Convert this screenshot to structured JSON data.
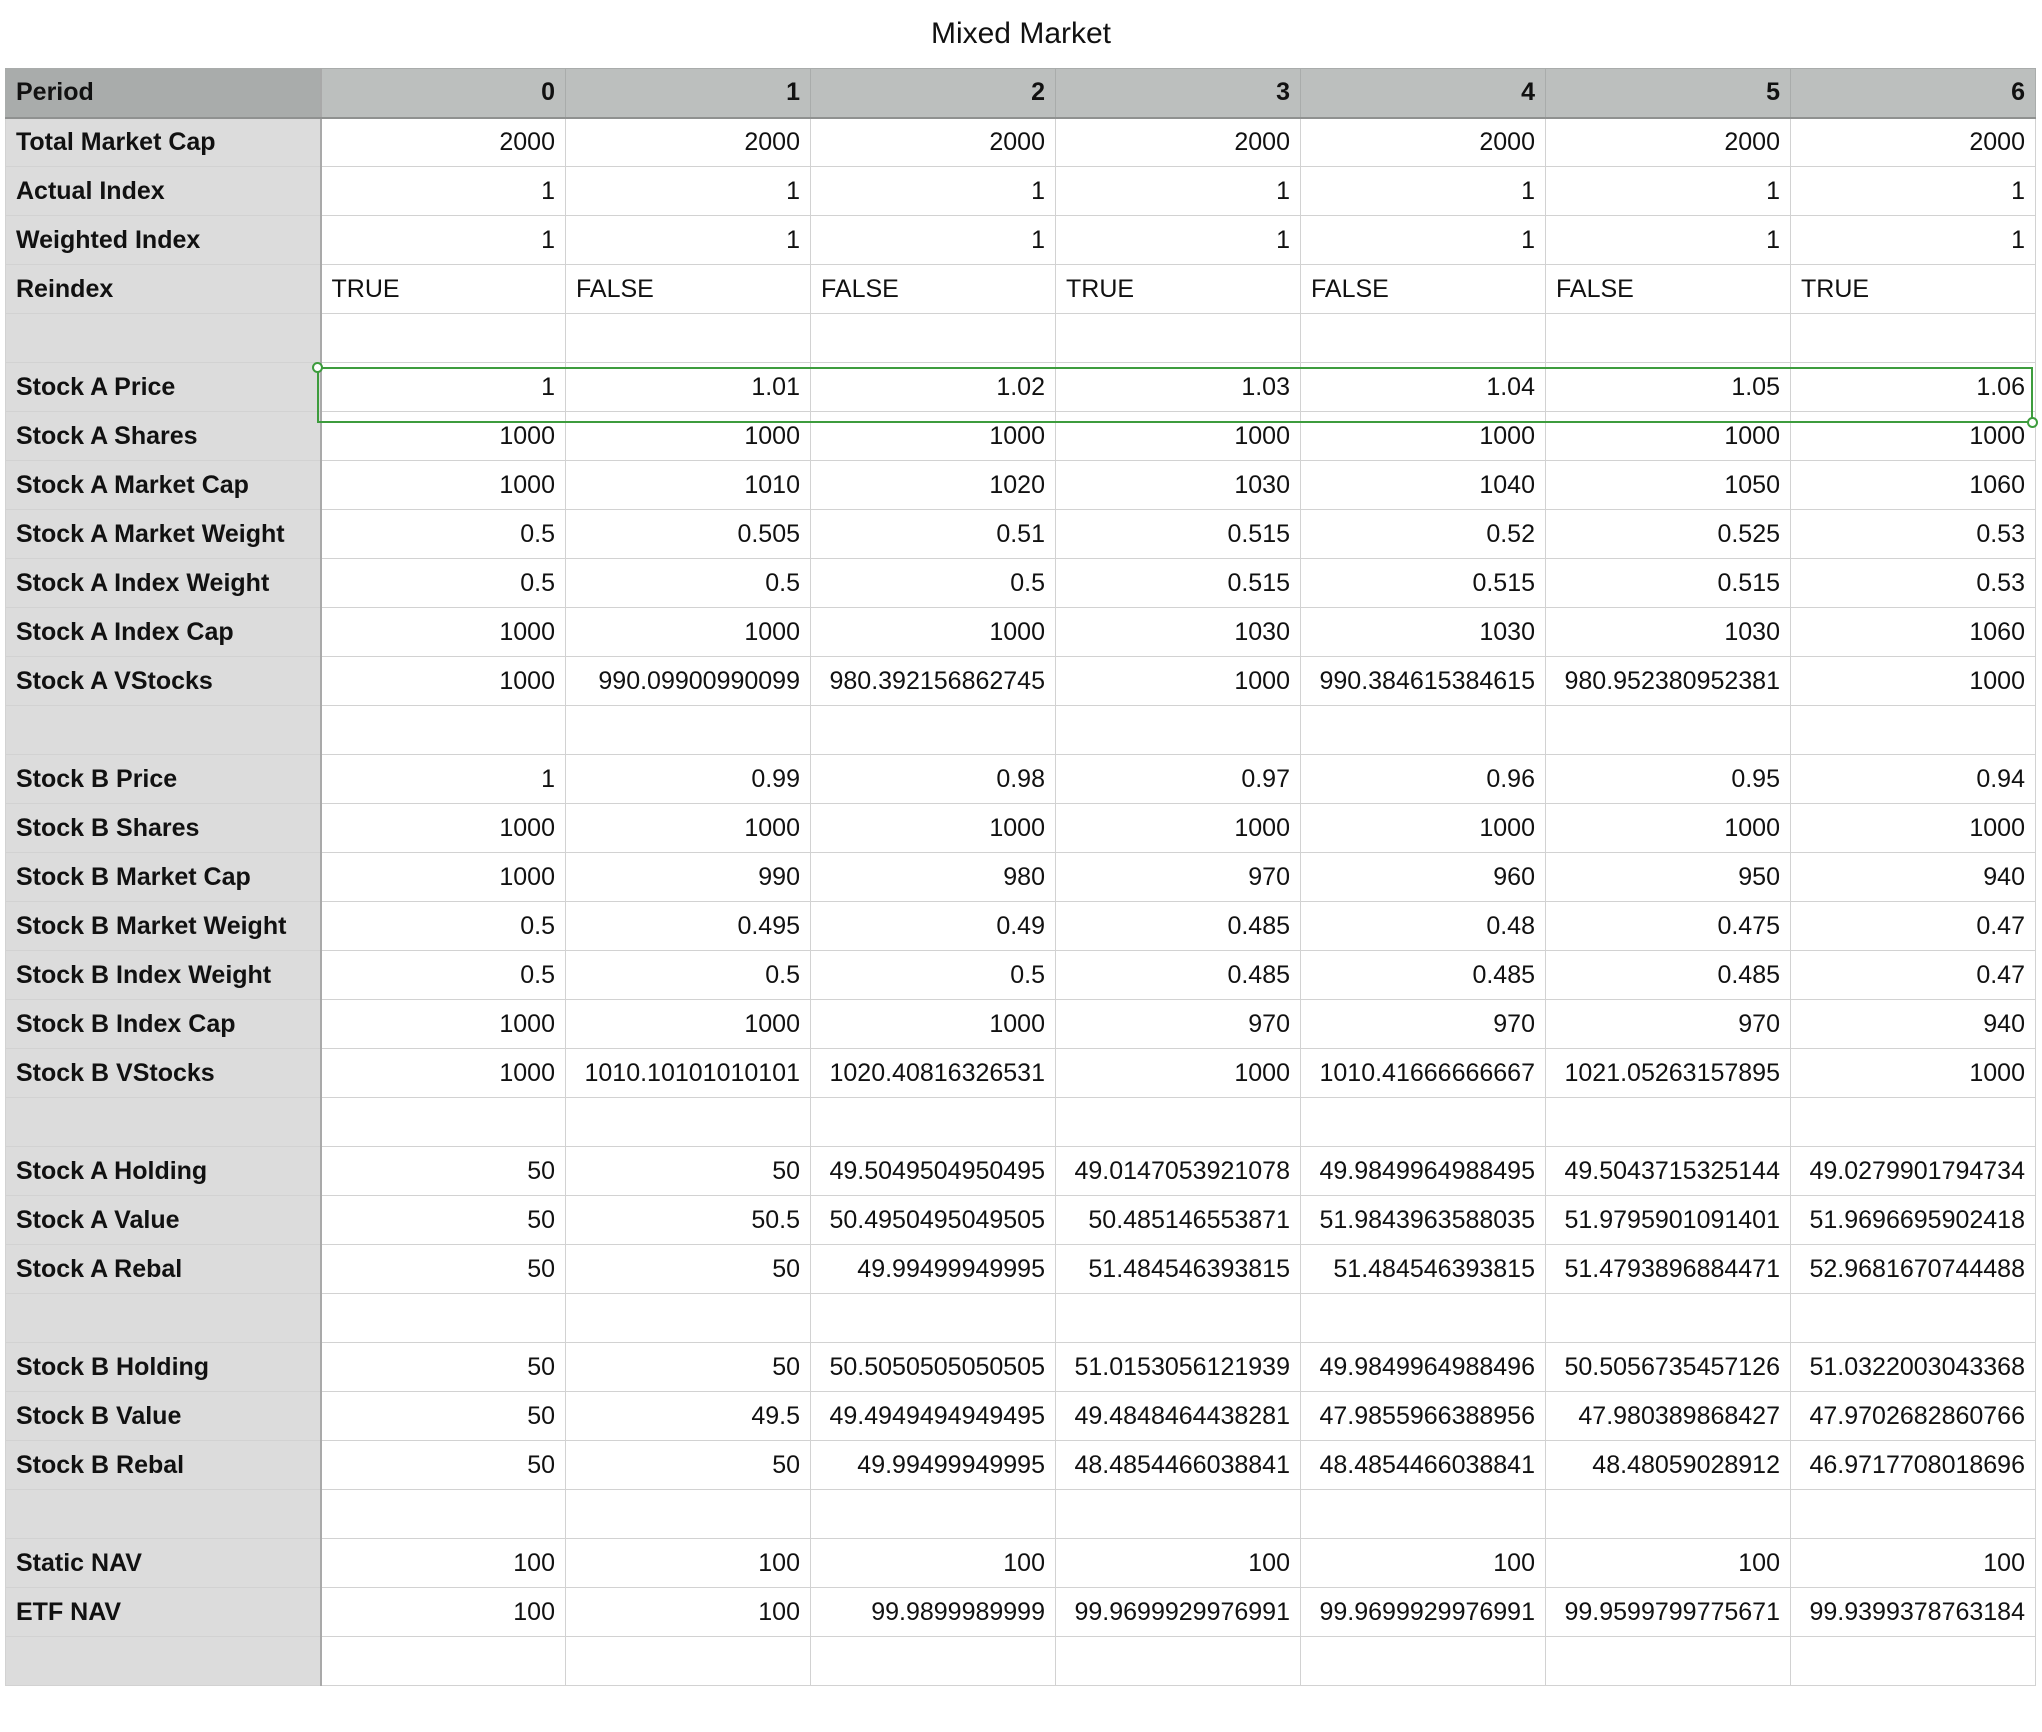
{
  "sheet": {
    "title": "Mixed Market",
    "header": {
      "label": "Period",
      "periods": [
        "0",
        "1",
        "2",
        "3",
        "4",
        "5",
        "6"
      ]
    },
    "rows": [
      {
        "label": "Total Market Cap",
        "values": [
          "2000",
          "2000",
          "2000",
          "2000",
          "2000",
          "2000",
          "2000"
        ]
      },
      {
        "label": "Actual Index",
        "values": [
          "1",
          "1",
          "1",
          "1",
          "1",
          "1",
          "1"
        ]
      },
      {
        "label": "Weighted Index",
        "values": [
          "1",
          "1",
          "1",
          "1",
          "1",
          "1",
          "1"
        ]
      },
      {
        "label": "Reindex",
        "text": true,
        "values": [
          "TRUE",
          "FALSE",
          "FALSE",
          "TRUE",
          "FALSE",
          "FALSE",
          "TRUE"
        ]
      },
      {
        "label": "",
        "values": [
          "",
          "",
          "",
          "",
          "",
          "",
          ""
        ]
      },
      {
        "label": "Stock A Price",
        "selected": true,
        "values": [
          "1",
          "1.01",
          "1.02",
          "1.03",
          "1.04",
          "1.05",
          "1.06"
        ]
      },
      {
        "label": "Stock A Shares",
        "values": [
          "1000",
          "1000",
          "1000",
          "1000",
          "1000",
          "1000",
          "1000"
        ]
      },
      {
        "label": "Stock A Market Cap",
        "values": [
          "1000",
          "1010",
          "1020",
          "1030",
          "1040",
          "1050",
          "1060"
        ]
      },
      {
        "label": "Stock A Market Weight",
        "values": [
          "0.5",
          "0.505",
          "0.51",
          "0.515",
          "0.52",
          "0.525",
          "0.53"
        ]
      },
      {
        "label": "Stock A Index Weight",
        "values": [
          "0.5",
          "0.5",
          "0.5",
          "0.515",
          "0.515",
          "0.515",
          "0.53"
        ]
      },
      {
        "label": "Stock A Index Cap",
        "values": [
          "1000",
          "1000",
          "1000",
          "1030",
          "1030",
          "1030",
          "1060"
        ]
      },
      {
        "label": "Stock A VStocks",
        "values": [
          "1000",
          "990.09900990099",
          "980.392156862745",
          "1000",
          "990.384615384615",
          "980.952380952381",
          "1000"
        ]
      },
      {
        "label": "",
        "values": [
          "",
          "",
          "",
          "",
          "",
          "",
          ""
        ]
      },
      {
        "label": "Stock B Price",
        "values": [
          "1",
          "0.99",
          "0.98",
          "0.97",
          "0.96",
          "0.95",
          "0.94"
        ]
      },
      {
        "label": "Stock B Shares",
        "values": [
          "1000",
          "1000",
          "1000",
          "1000",
          "1000",
          "1000",
          "1000"
        ]
      },
      {
        "label": "Stock B Market Cap",
        "values": [
          "1000",
          "990",
          "980",
          "970",
          "960",
          "950",
          "940"
        ]
      },
      {
        "label": "Stock B Market Weight",
        "values": [
          "0.5",
          "0.495",
          "0.49",
          "0.485",
          "0.48",
          "0.475",
          "0.47"
        ]
      },
      {
        "label": "Stock B Index Weight",
        "values": [
          "0.5",
          "0.5",
          "0.5",
          "0.485",
          "0.485",
          "0.485",
          "0.47"
        ]
      },
      {
        "label": "Stock B Index Cap",
        "values": [
          "1000",
          "1000",
          "1000",
          "970",
          "970",
          "970",
          "940"
        ]
      },
      {
        "label": "Stock B VStocks",
        "values": [
          "1000",
          "1010.10101010101",
          "1020.40816326531",
          "1000",
          "1010.41666666667",
          "1021.05263157895",
          "1000"
        ]
      },
      {
        "label": "",
        "values": [
          "",
          "",
          "",
          "",
          "",
          "",
          ""
        ]
      },
      {
        "label": "Stock A Holding",
        "values": [
          "50",
          "50",
          "49.5049504950495",
          "49.0147053921078",
          "49.9849964988495",
          "49.5043715325144",
          "49.0279901794734"
        ]
      },
      {
        "label": "Stock A Value",
        "values": [
          "50",
          "50.5",
          "50.4950495049505",
          "50.485146553871",
          "51.9843963588035",
          "51.9795901091401",
          "51.9696695902418"
        ]
      },
      {
        "label": "Stock A Rebal",
        "values": [
          "50",
          "50",
          "49.99499949995",
          "51.484546393815",
          "51.484546393815",
          "51.4793896884471",
          "52.9681670744488"
        ]
      },
      {
        "label": "",
        "values": [
          "",
          "",
          "",
          "",
          "",
          "",
          ""
        ]
      },
      {
        "label": "Stock B Holding",
        "values": [
          "50",
          "50",
          "50.5050505050505",
          "51.0153056121939",
          "49.9849964988496",
          "50.5056735457126",
          "51.0322003043368"
        ]
      },
      {
        "label": "Stock B Value",
        "values": [
          "50",
          "49.5",
          "49.4949494949495",
          "49.4848464438281",
          "47.9855966388956",
          "47.980389868427",
          "47.9702682860766"
        ]
      },
      {
        "label": "Stock B Rebal",
        "values": [
          "50",
          "50",
          "49.99499949995",
          "48.4854466038841",
          "48.4854466038841",
          "48.48059028912",
          "46.9717708018696"
        ]
      },
      {
        "label": "",
        "values": [
          "",
          "",
          "",
          "",
          "",
          "",
          ""
        ]
      },
      {
        "label": "Static NAV",
        "values": [
          "100",
          "100",
          "100",
          "100",
          "100",
          "100",
          "100"
        ]
      },
      {
        "label": "ETF NAV",
        "values": [
          "100",
          "100",
          "99.9899989999",
          "99.9699929976991",
          "99.9699929976991",
          "99.9599799775671",
          "99.9399378763184"
        ]
      },
      {
        "label": "",
        "values": [
          "",
          "",
          "",
          "",
          "",
          "",
          ""
        ]
      }
    ]
  }
}
